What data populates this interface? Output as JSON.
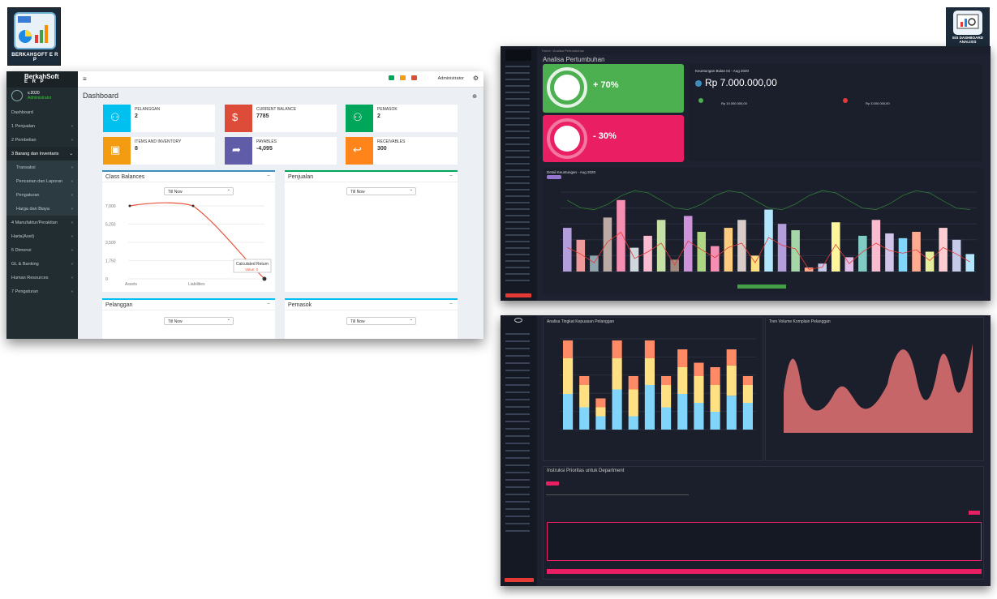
{
  "logos": {
    "left_caption": "BERKAHSOFT E R P",
    "right_caption": "EIS DASHBOARD ANALISIS"
  },
  "erp": {
    "brand_line1": "BerkahSoft",
    "brand_line2": "E R P",
    "version": "v.2020",
    "role": "Administrator",
    "header_user": "Administrator",
    "page_title": "Dashboard",
    "menu": [
      {
        "label": "Dashboard"
      },
      {
        "label": "1 Penjualan"
      },
      {
        "label": "2 Pembelian"
      },
      {
        "label": "3 Barang dan Inventaris"
      },
      {
        "label": "Transaksi"
      },
      {
        "label": "Pencarian dan Laporan"
      },
      {
        "label": "Pengaturan"
      },
      {
        "label": "Harga dan Biaya"
      },
      {
        "label": "4 Manufaktur/Perakitan"
      },
      {
        "label": "Harta(Aset)"
      },
      {
        "label": "5 Dimensi"
      },
      {
        "label": "GL & Banking"
      },
      {
        "label": "Human Resources"
      },
      {
        "label": "7 Pengaturan"
      }
    ],
    "tiles": [
      {
        "label": "PELANGGAN",
        "value": "2",
        "color": "#00c0ef"
      },
      {
        "label": "CURRENT BALANCE",
        "value": "7785",
        "color": "#dd4b39"
      },
      {
        "label": "PEMASOK",
        "value": "2",
        "color": "#00a65a"
      },
      {
        "label": "ITEMS AND INVENTORY",
        "value": "8",
        "color": "#f39c12"
      },
      {
        "label": "PAYABLES",
        "value": "-4,095",
        "color": "#605ca8"
      },
      {
        "label": "RECEIVABLES",
        "value": "300",
        "color": "#ff851b"
      }
    ],
    "boxes": {
      "class_balances": "Class Balances",
      "penjualan": "Penjualan",
      "pelanggan": "Pelanggan",
      "pemasok": "Pemasok",
      "select_value": "Till Now"
    },
    "tooltip": {
      "title": "Calculated Return",
      "value": "Value: 0"
    }
  },
  "chart_data": [
    {
      "type": "line",
      "title": "Class Balances",
      "categories": [
        "Assets",
        "Liabilities",
        ""
      ],
      "values": [
        7000,
        7000,
        0
      ],
      "y_ticks": [
        "7,000",
        "5,250",
        "3,500",
        "1,750",
        "0"
      ],
      "ylim": [
        0,
        7000
      ],
      "color": "#e8563f"
    }
  ],
  "dash1": {
    "title": "Analisa Pertumbuhan",
    "growth_value": "+ 70%",
    "decline_value": "- 30%",
    "info_title": "Keuntungan Bulan Ini - Aug 2020",
    "amount": "Rp 7.000.000,00",
    "pendapatan": "Rp 10.000.000,00",
    "pengeluaran": "Rp 3.000.000,00",
    "chart_title": "Detail Keuntungan - Aug 2020",
    "bar_colors": [
      "#b39ddb",
      "#ef9a9a",
      "#90a4ae",
      "#bcaaa4",
      "#f48fb1",
      "#cfd8dc",
      "#f8bbd0",
      "#c5e1a5",
      "#a1887f",
      "#ce93d8",
      "#aed581",
      "#f48fb1",
      "#ffcc80",
      "#d7ccc8",
      "#ffe082",
      "#b3e5fc",
      "#b39ddb",
      "#a5d6a7",
      "#ffab91",
      "#c5cae9",
      "#fff59d",
      "#e1bee7",
      "#80cbc4",
      "#f8bbd0",
      "#d1c4e9",
      "#81d4fa",
      "#ffab91",
      "#e6ee9c",
      "#ffcdd2",
      "#c5cae9",
      "#b3e5fc"
    ],
    "bar_values": [
      55,
      40,
      20,
      68,
      90,
      30,
      45,
      65,
      15,
      70,
      50,
      32,
      55,
      65,
      20,
      78,
      60,
      52,
      5,
      10,
      62,
      18,
      45,
      65,
      48,
      42,
      50,
      25,
      55,
      40,
      22
    ]
  },
  "dash2": {
    "left_title": "Analisa Tingkat Kepuasan Pelanggan",
    "right_title": "Tren Volume Komplain Pelanggan",
    "instruksi_title": "Instruksi Prioritas untuk Department",
    "stack_bars": [
      [
        40,
        40,
        20
      ],
      [
        25,
        25,
        10
      ],
      [
        15,
        10,
        10
      ],
      [
        45,
        35,
        20
      ],
      [
        15,
        30,
        15
      ],
      [
        50,
        30,
        20
      ],
      [
        25,
        25,
        10
      ],
      [
        40,
        30,
        20
      ],
      [
        30,
        30,
        15
      ],
      [
        20,
        30,
        20
      ],
      [
        38,
        34,
        18
      ],
      [
        30,
        20,
        10
      ]
    ]
  }
}
